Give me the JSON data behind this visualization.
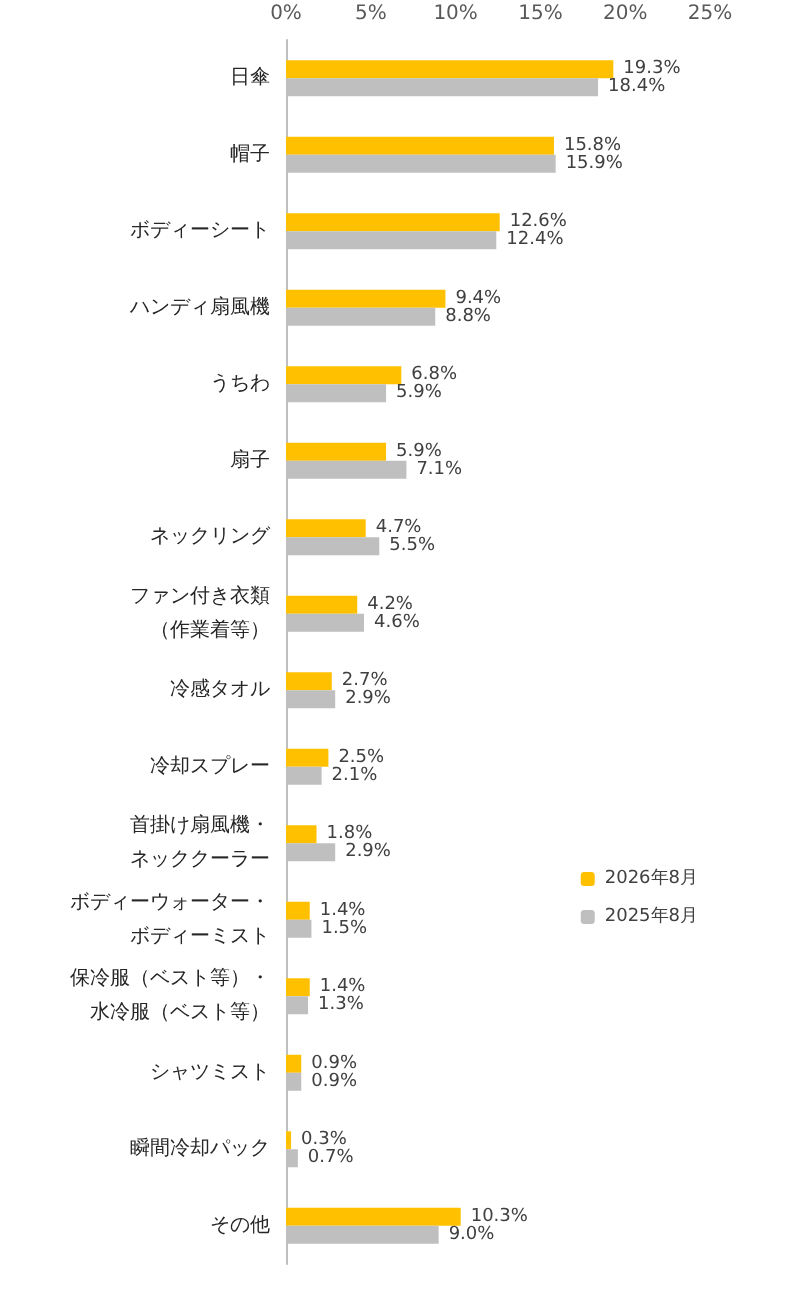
{
  "chart_data": {
    "type": "bar",
    "orientation": "horizontal",
    "categories": [
      "日傘",
      "帽子",
      "ボディーシート",
      "ハンディ扇風機",
      "うちわ",
      "扇子",
      "ネックリング",
      "ファン付き衣類（作業着等）",
      "冷感タオル",
      "冷却スプレー",
      "首掛け扇風機・ネッククーラー",
      "ボディーウォーター・ボディーミスト",
      "保冷服（ベスト等）・水冷服（ベスト等）",
      "シャツミスト",
      "瞬間冷却パック",
      "その他"
    ],
    "series": [
      {
        "name": "2026年8月",
        "color": "#ffc000",
        "values": [
          19.3,
          15.8,
          12.6,
          9.4,
          6.8,
          5.9,
          4.7,
          4.2,
          2.7,
          2.5,
          1.8,
          1.4,
          1.4,
          0.9,
          0.3,
          10.3
        ],
        "value_labels": [
          "19.3%",
          "15.8%",
          "12.6%",
          "9.4%",
          "6.8%",
          "5.9%",
          "4.7%",
          "4.2%",
          "2.7%",
          "2.5%",
          "1.8%",
          "1.4%",
          "1.4%",
          "0.9%",
          "0.3%",
          "10.3%"
        ]
      },
      {
        "name": "2025年8月",
        "color": "#bfbfbf",
        "values": [
          18.4,
          15.9,
          12.4,
          8.8,
          5.9,
          7.1,
          5.5,
          4.6,
          2.9,
          2.1,
          2.9,
          1.5,
          1.3,
          0.9,
          0.7,
          9.0
        ],
        "value_labels": [
          "18.4%",
          "15.9%",
          "12.4%",
          "8.8%",
          "5.9%",
          "7.1%",
          "5.5%",
          "4.6%",
          "2.9%",
          "2.1%",
          "2.9%",
          "1.5%",
          "1.3%",
          "0.9%",
          "0.7%",
          "9.0%"
        ]
      }
    ],
    "xlim": [
      0,
      25
    ],
    "xticks": [
      {
        "value": 0,
        "label": "0%"
      },
      {
        "value": 5,
        "label": "5%"
      },
      {
        "value": 10,
        "label": "10%"
      },
      {
        "value": 15,
        "label": "15%"
      },
      {
        "value": 20,
        "label": "20%"
      },
      {
        "value": 25,
        "label": "25%"
      }
    ],
    "grid": false,
    "legend": "right"
  }
}
